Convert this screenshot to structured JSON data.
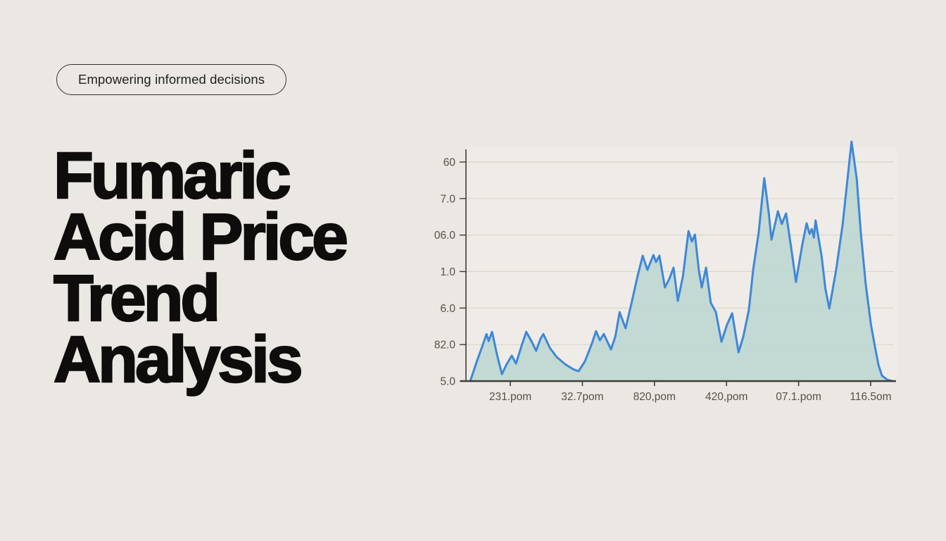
{
  "badge": {
    "label": "Empowering informed decisions"
  },
  "title": {
    "lines": [
      "Fumaric",
      "Acid Price",
      "Trend",
      "Analysis"
    ]
  },
  "chart_data": {
    "type": "area",
    "title": "",
    "xlabel": "",
    "ylabel": "",
    "grid": "horizontal",
    "legend": "none",
    "y_tick_labels": [
      "60",
      "7.0",
      "06.0",
      "1.0",
      "6.0",
      "82.0",
      "5.0"
    ],
    "x_tick_labels": [
      "231.pom",
      "32.7pom",
      "820,pom",
      "420,pom",
      "07.1.pom",
      "116.5om"
    ],
    "ylim": [
      0,
      100
    ],
    "colors": {
      "line": "#3f87d8",
      "fill": "#bcd7d2",
      "grid": "#d8d4cd",
      "axis": "#3f3c37",
      "tick_text": "#55504a",
      "plot_bg": "#efece7"
    },
    "series": [
      {
        "name": "price-trend",
        "points_pct": [
          [
            1.0,
            0
          ],
          [
            2.6,
            8.5
          ],
          [
            3.8,
            14.4
          ],
          [
            4.8,
            19.6
          ],
          [
            5.3,
            16.7
          ],
          [
            6.1,
            20.5
          ],
          [
            7.2,
            11.4
          ],
          [
            8.4,
            2.9
          ],
          [
            9.5,
            7.0
          ],
          [
            10.7,
            10.6
          ],
          [
            11.7,
            7.3
          ],
          [
            13.0,
            14.7
          ],
          [
            14.1,
            20.5
          ],
          [
            15.3,
            16.7
          ],
          [
            16.4,
            12.6
          ],
          [
            17.4,
            17.6
          ],
          [
            18.1,
            19.6
          ],
          [
            19.6,
            13.8
          ],
          [
            21.2,
            10.0
          ],
          [
            23.2,
            7.0
          ],
          [
            25.0,
            5.0
          ],
          [
            26.3,
            4.1
          ],
          [
            27.8,
            8.2
          ],
          [
            29.4,
            15.5
          ],
          [
            30.4,
            20.8
          ],
          [
            31.3,
            17.0
          ],
          [
            32.2,
            19.6
          ],
          [
            33.9,
            13.2
          ],
          [
            34.9,
            18.5
          ],
          [
            35.9,
            28.7
          ],
          [
            36.7,
            24.9
          ],
          [
            37.3,
            22.0
          ],
          [
            38.7,
            32.6
          ],
          [
            40.1,
            43.7
          ],
          [
            41.3,
            52.2
          ],
          [
            42.4,
            46.3
          ],
          [
            43.8,
            52.5
          ],
          [
            44.4,
            49.6
          ],
          [
            45.2,
            52.2
          ],
          [
            46.5,
            39.0
          ],
          [
            47.5,
            42.5
          ],
          [
            48.5,
            47.2
          ],
          [
            49.5,
            33.4
          ],
          [
            50.7,
            43.7
          ],
          [
            52.0,
            62.5
          ],
          [
            52.8,
            58.1
          ],
          [
            53.5,
            61.0
          ],
          [
            54.4,
            46.3
          ],
          [
            55.1,
            39.0
          ],
          [
            56.1,
            47.2
          ],
          [
            57.2,
            32.6
          ],
          [
            58.4,
            28.7
          ],
          [
            59.7,
            16.4
          ],
          [
            61.0,
            23.5
          ],
          [
            62.2,
            28.2
          ],
          [
            63.7,
            12.0
          ],
          [
            64.8,
            18.5
          ],
          [
            66.1,
            29.6
          ],
          [
            67.1,
            46.3
          ],
          [
            68.4,
            61.9
          ],
          [
            69.7,
            84.5
          ],
          [
            70.7,
            70.7
          ],
          [
            71.4,
            58.9
          ],
          [
            72.9,
            70.7
          ],
          [
            73.8,
            65.4
          ],
          [
            74.8,
            69.8
          ],
          [
            76.0,
            55.4
          ],
          [
            77.1,
            41.3
          ],
          [
            78.6,
            56.9
          ],
          [
            79.6,
            65.7
          ],
          [
            80.3,
            61.3
          ],
          [
            80.8,
            63.3
          ],
          [
            81.3,
            59.8
          ],
          [
            81.7,
            66.9
          ],
          [
            83.1,
            52.2
          ],
          [
            84.0,
            38.4
          ],
          [
            84.9,
            30.2
          ],
          [
            86.5,
            46.3
          ],
          [
            88.0,
            64.8
          ],
          [
            89.0,
            81.5
          ],
          [
            90.1,
            99.7
          ],
          [
            91.3,
            84.5
          ],
          [
            92.3,
            61.0
          ],
          [
            93.4,
            40.5
          ],
          [
            94.6,
            23.8
          ],
          [
            95.6,
            14.1
          ],
          [
            96.4,
            6.7
          ],
          [
            97.2,
            2.3
          ],
          [
            98.4,
            0.6
          ],
          [
            99.7,
            0
          ]
        ]
      }
    ]
  }
}
